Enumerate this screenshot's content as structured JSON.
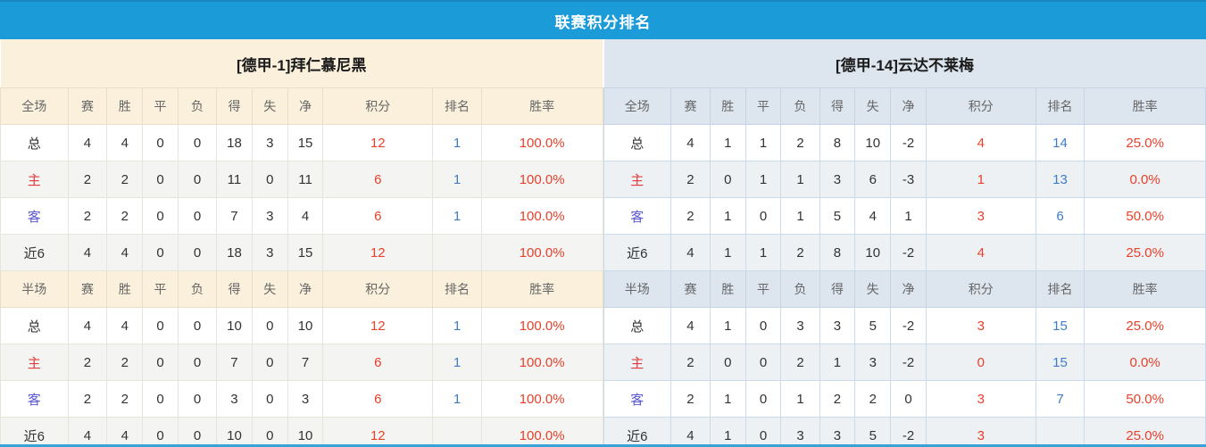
{
  "title_bar": {
    "title": "联赛积分排名"
  },
  "table_columns": {
    "stat_headers": [
      "赛",
      "胜",
      "平",
      "负",
      "得",
      "失",
      "净",
      "积分",
      "排名",
      "胜率"
    ]
  },
  "teams": [
    {
      "name": "[德甲-1]拜仁慕尼黑",
      "sections": [
        {
          "label": "全场",
          "rows": [
            {
              "label": "总",
              "stats": [
                "4",
                "4",
                "0",
                "0",
                "18",
                "3",
                "15"
              ],
              "points": "12",
              "rank": "1",
              "win_rate": "100.0%"
            },
            {
              "label": "主",
              "stats": [
                "2",
                "2",
                "0",
                "0",
                "11",
                "0",
                "11"
              ],
              "points": "6",
              "rank": "1",
              "win_rate": "100.0%"
            },
            {
              "label": "客",
              "stats": [
                "2",
                "2",
                "0",
                "0",
                "7",
                "3",
                "4"
              ],
              "points": "6",
              "rank": "1",
              "win_rate": "100.0%"
            },
            {
              "label": "近6",
              "stats": [
                "4",
                "4",
                "0",
                "0",
                "18",
                "3",
                "15"
              ],
              "points": "12",
              "rank": "",
              "win_rate": "100.0%"
            }
          ]
        },
        {
          "label": "半场",
          "rows": [
            {
              "label": "总",
              "stats": [
                "4",
                "4",
                "0",
                "0",
                "10",
                "0",
                "10"
              ],
              "points": "12",
              "rank": "1",
              "win_rate": "100.0%"
            },
            {
              "label": "主",
              "stats": [
                "2",
                "2",
                "0",
                "0",
                "7",
                "0",
                "7"
              ],
              "points": "6",
              "rank": "1",
              "win_rate": "100.0%"
            },
            {
              "label": "客",
              "stats": [
                "2",
                "2",
                "0",
                "0",
                "3",
                "0",
                "3"
              ],
              "points": "6",
              "rank": "1",
              "win_rate": "100.0%"
            },
            {
              "label": "近6",
              "stats": [
                "4",
                "4",
                "0",
                "0",
                "10",
                "0",
                "10"
              ],
              "points": "12",
              "rank": "",
              "win_rate": "100.0%"
            }
          ]
        }
      ]
    },
    {
      "name": "[德甲-14]云达不莱梅",
      "sections": [
        {
          "label": "全场",
          "rows": [
            {
              "label": "总",
              "stats": [
                "4",
                "1",
                "1",
                "2",
                "8",
                "10",
                "-2"
              ],
              "points": "4",
              "rank": "14",
              "win_rate": "25.0%"
            },
            {
              "label": "主",
              "stats": [
                "2",
                "0",
                "1",
                "1",
                "3",
                "6",
                "-3"
              ],
              "points": "1",
              "rank": "13",
              "win_rate": "0.0%"
            },
            {
              "label": "客",
              "stats": [
                "2",
                "1",
                "0",
                "1",
                "5",
                "4",
                "1"
              ],
              "points": "3",
              "rank": "6",
              "win_rate": "50.0%"
            },
            {
              "label": "近6",
              "stats": [
                "4",
                "1",
                "1",
                "2",
                "8",
                "10",
                "-2"
              ],
              "points": "4",
              "rank": "",
              "win_rate": "25.0%"
            }
          ]
        },
        {
          "label": "半场",
          "rows": [
            {
              "label": "总",
              "stats": [
                "4",
                "1",
                "0",
                "3",
                "3",
                "5",
                "-2"
              ],
              "points": "3",
              "rank": "15",
              "win_rate": "25.0%"
            },
            {
              "label": "主",
              "stats": [
                "2",
                "0",
                "0",
                "2",
                "1",
                "3",
                "-2"
              ],
              "points": "0",
              "rank": "15",
              "win_rate": "0.0%"
            },
            {
              "label": "客",
              "stats": [
                "2",
                "1",
                "0",
                "1",
                "2",
                "2",
                "0"
              ],
              "points": "3",
              "rank": "7",
              "win_rate": "50.0%"
            },
            {
              "label": "近6",
              "stats": [
                "4",
                "1",
                "0",
                "3",
                "3",
                "5",
                "-2"
              ],
              "points": "3",
              "rank": "",
              "win_rate": "25.0%"
            }
          ]
        }
      ]
    }
  ],
  "colors": {
    "title_bar_bg": "#1b9bd7",
    "left_header_bg": "#faf0dc",
    "right_header_bg": "#dde5ef",
    "points_color": "#e8402a",
    "rank_color": "#3e7cc6",
    "win_rate_color": "#e8402a",
    "home_label_color": "#e23b3b",
    "away_label_color": "#5a58d0",
    "bottom_border_color": "#38a3d8"
  }
}
